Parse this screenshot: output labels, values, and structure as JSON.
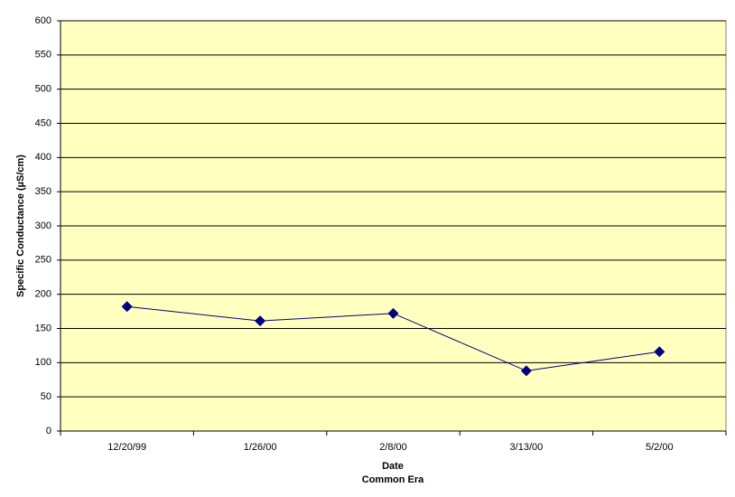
{
  "chart_data": {
    "type": "line",
    "ylabel": "Specific Conductance (µS/cm)",
    "xlabel": [
      "Date",
      "Common Era"
    ],
    "categories": [
      "12/20/99",
      "1/26/00",
      "2/8/00",
      "3/13/00",
      "5/2/00"
    ],
    "values": [
      182,
      161,
      172,
      88,
      116
    ],
    "color": "#000080",
    "ylim": [
      0,
      600
    ],
    "yticks": [
      0,
      50,
      100,
      150,
      200,
      250,
      300,
      350,
      400,
      450,
      500,
      550,
      600
    ],
    "grid": true
  }
}
